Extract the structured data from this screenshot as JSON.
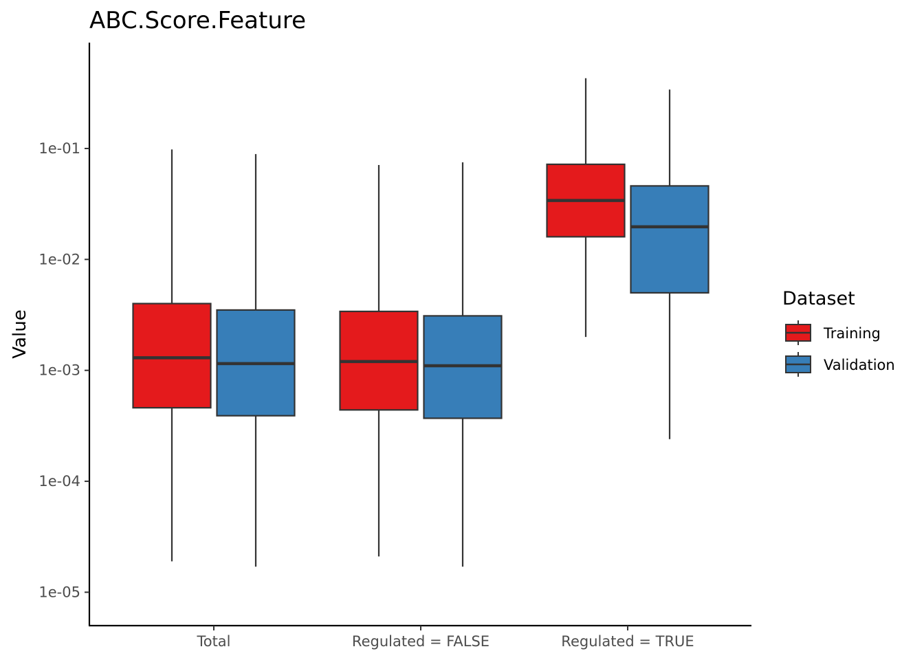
{
  "chart_data": {
    "type": "boxplot",
    "title": "ABC.Score.Feature",
    "xlabel": "",
    "ylabel": "Value",
    "yscale": "log10",
    "ylim": [
      5e-06,
      0.9
    ],
    "yticks": [
      1e-05,
      0.0001,
      0.001,
      0.01,
      0.1
    ],
    "ytick_labels": [
      "1e-05",
      "1e-04",
      "1e-03",
      "1e-02",
      "1e-01"
    ],
    "categories": [
      "Total",
      "Regulated = FALSE",
      "Regulated = TRUE"
    ],
    "grid": false,
    "legend": {
      "title": "Dataset",
      "position": "right"
    },
    "series": [
      {
        "name": "Training",
        "color": "#e41a1c",
        "boxes": [
          {
            "min": 1.9e-05,
            "q1": 0.00046,
            "median": 0.0013,
            "q3": 0.004,
            "max": 0.098
          },
          {
            "min": 2.1e-05,
            "q1": 0.00044,
            "median": 0.0012,
            "q3": 0.0034,
            "max": 0.071
          },
          {
            "min": 0.002,
            "q1": 0.016,
            "median": 0.034,
            "q3": 0.072,
            "max": 0.43
          }
        ]
      },
      {
        "name": "Validation",
        "color": "#377eb8",
        "boxes": [
          {
            "min": 1.7e-05,
            "q1": 0.00039,
            "median": 0.00115,
            "q3": 0.0035,
            "max": 0.089
          },
          {
            "min": 1.7e-05,
            "q1": 0.00037,
            "median": 0.0011,
            "q3": 0.0031,
            "max": 0.075
          },
          {
            "min": 0.00024,
            "q1": 0.005,
            "median": 0.0197,
            "q3": 0.046,
            "max": 0.34
          }
        ]
      }
    ]
  }
}
